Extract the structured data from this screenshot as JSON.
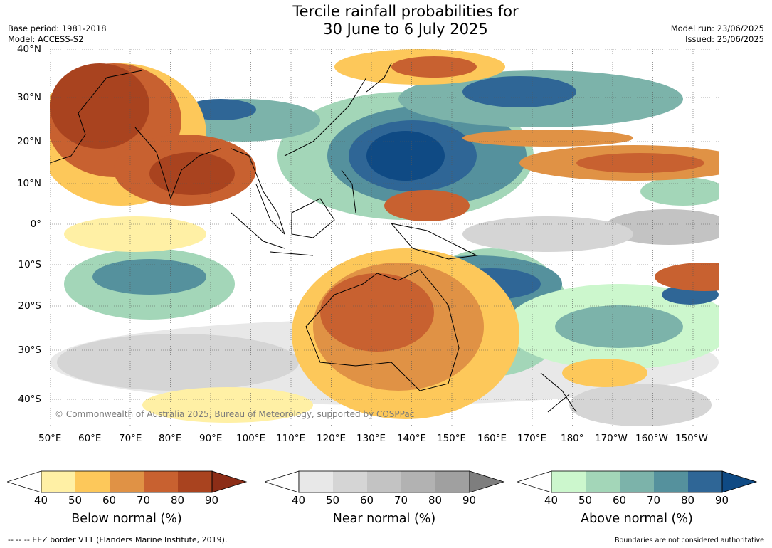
{
  "title": {
    "line1": "Tercile rainfall probabilities for",
    "line2": "30 June to 6 July 2025"
  },
  "meta_left": {
    "base_period": "Base period: 1981-2018",
    "model": "Model: ACCESS-S2"
  },
  "meta_right": {
    "model_run": "Model run: 23/06/2025",
    "issued": "Issued: 25/06/2025"
  },
  "copyright": "© Commonwealth of Australia 2025, Bureau of Meteorology, supported by COSPPac",
  "lat_labels": [
    "40°N",
    "30°N",
    "20°N",
    "10°N",
    "0°",
    "10°S",
    "20°S",
    "30°S",
    "40°S"
  ],
  "lon_labels": [
    "50°E",
    "60°E",
    "70°E",
    "80°E",
    "90°E",
    "100°E",
    "110°E",
    "120°E",
    "130°E",
    "140°E",
    "150°E",
    "160°E",
    "170°E",
    "180°",
    "170°W",
    "160°W",
    "150°W"
  ],
  "colorbars": [
    {
      "label": "Below normal (%)",
      "ticks": [
        "40",
        "50",
        "60",
        "70",
        "80",
        "90"
      ],
      "colors": [
        "#fff0a5",
        "#fdc85a",
        "#e09245",
        "#c86130",
        "#a9431f"
      ],
      "extend_color": "#8c2d17"
    },
    {
      "label": "Near normal (%)",
      "ticks": [
        "40",
        "50",
        "60",
        "70",
        "80",
        "90"
      ],
      "colors": [
        "#e8e8e8",
        "#d5d5d5",
        "#c3c3c3",
        "#b2b2b2",
        "#a0a0a0"
      ],
      "extend_color": "#7e7e7e"
    },
    {
      "label": "Above normal (%)",
      "ticks": [
        "40",
        "50",
        "60",
        "70",
        "80",
        "90"
      ],
      "colors": [
        "#ccf7cd",
        "#a3d6b8",
        "#7cb3aa",
        "#55919d",
        "#2f6696"
      ],
      "extend_color": "#0f4a84"
    }
  ],
  "footer_left": "--  --  -- EEZ border V11 (Flanders Marine Institute, 2019).",
  "footer_right": "Boundaries are not considered authoritative"
}
